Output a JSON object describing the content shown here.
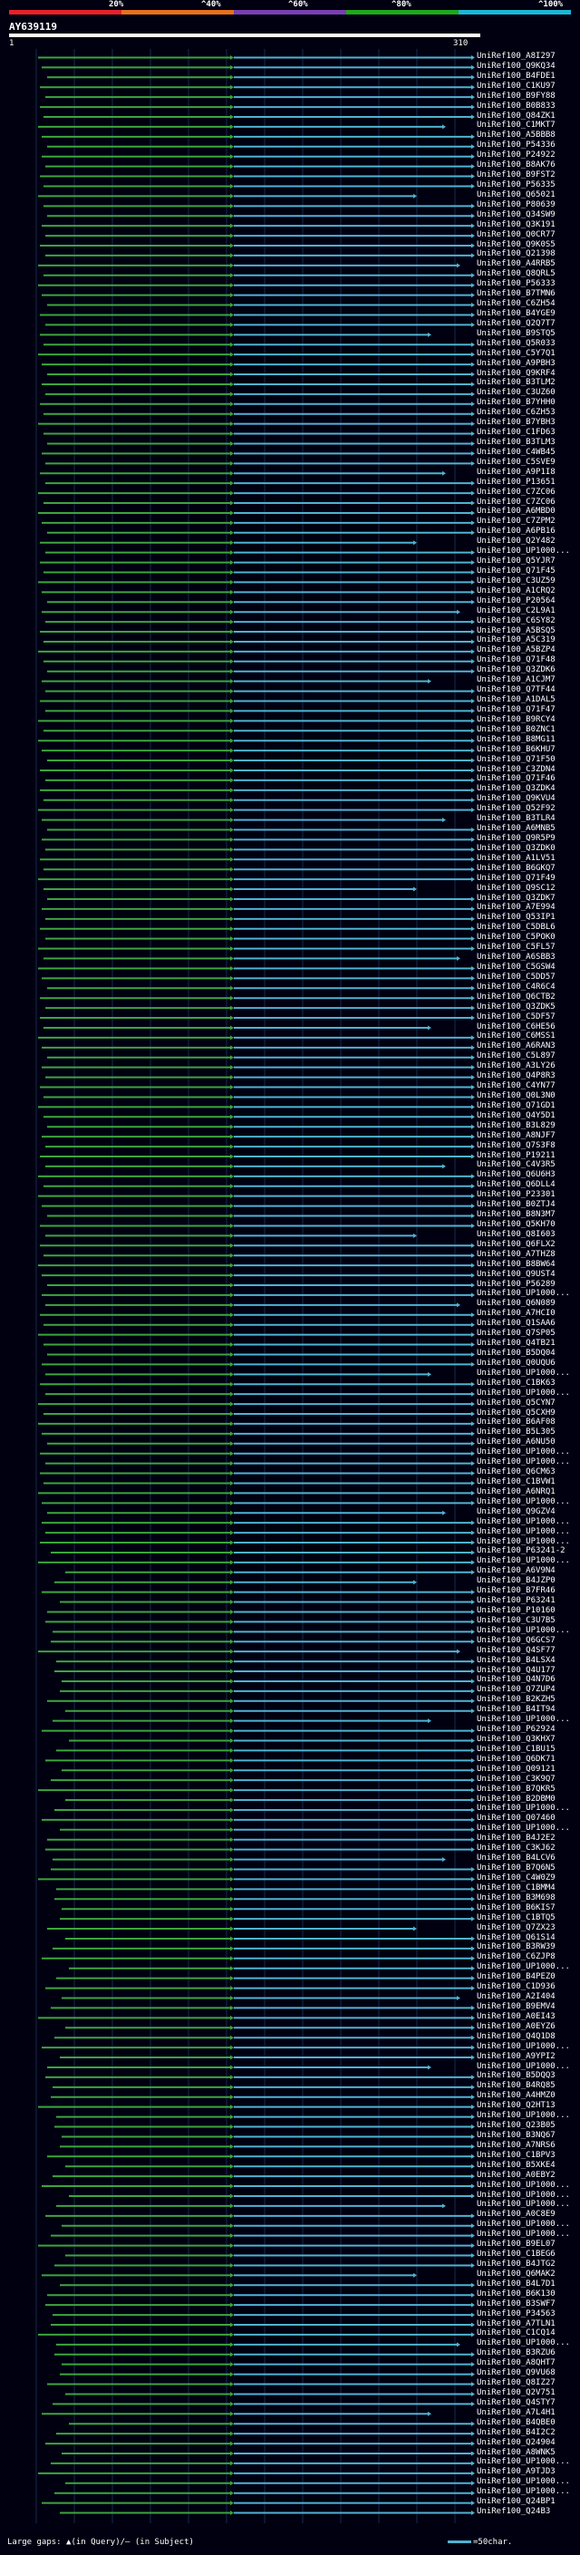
{
  "scale": {
    "labels": [
      "20%",
      "^40%",
      "^60%",
      "^80%",
      "^100%"
    ],
    "colors": [
      "#e8202a",
      "#e8701a",
      "#7a3fb3",
      "#1da81d",
      "#19b8d6"
    ]
  },
  "query": {
    "title": "AY639119",
    "start": "1",
    "end": "310"
  },
  "footer": {
    "text": "Large gaps: ▲(in Query)/– (in Subject)",
    "legend_text": "=50char."
  },
  "colors": {
    "background": "#000011",
    "green": "#3da53d",
    "blue": "#4fb3d1",
    "grid": "#1a2a4a"
  },
  "hits": [
    "UniRef100_A8I297",
    "UniRef100_Q9KQ34",
    "UniRef100_B4FDE1",
    "UniRef100_C1KU97",
    "UniRef100_B9FY88",
    "UniRef100_B0B833",
    "UniRef100_Q84ZK1",
    "UniRef100_C1MKT7",
    "UniRef100_A5BBB8",
    "UniRef100_P54336",
    "UniRef100_P24922",
    "UniRef100_B8AK76",
    "UniRef100_B9FST2",
    "UniRef100_P56335",
    "UniRef100_Q65021",
    "UniRef100_P80639",
    "UniRef100_Q34SW9",
    "UniRef100_Q3K191",
    "UniRef100_Q0CR77",
    "UniRef100_Q9K0S5",
    "UniRef100_Q21398",
    "UniRef100_A4RRB5",
    "UniRef100_Q8QRL5",
    "UniRef100_P56333",
    "UniRef100_B7TMN6",
    "UniRef100_C6ZH54",
    "UniRef100_B4YGE9",
    "UniRef100_Q2Q7T7",
    "UniRef100_B9STQ5",
    "UniRef100_Q5R033",
    "UniRef100_C5Y7Q1",
    "UniRef100_A9PBH3",
    "UniRef100_Q9KRF4",
    "UniRef100_B3TLM2",
    "UniRef100_C3UZ60",
    "UniRef100_B7YHH0",
    "UniRef100_C6ZH53",
    "UniRef100_B7YBH3",
    "UniRef100_C1FD63",
    "UniRef100_B3TLM3",
    "UniRef100_C4WB45",
    "UniRef100_C5SVE9",
    "UniRef100_A9P1I8",
    "UniRef100_P13651",
    "UniRef100_C7ZC06",
    "UniRef100_C7ZC06",
    "UniRef100_A6MBD0",
    "UniRef100_C7ZPM2",
    "UniRef100_A6PB16",
    "UniRef100_Q2Y482",
    "UniRef100_UP1000...",
    "UniRef100_Q5YJR7",
    "UniRef100_Q71F45",
    "UniRef100_C3UZ59",
    "UniRef100_A1CRQ2",
    "UniRef100_P20564",
    "UniRef100_C2L9A1",
    "UniRef100_C6SY82",
    "UniRef100_A5BSQ5",
    "UniRef100_A5C319",
    "UniRef100_A5BZP4",
    "UniRef100_Q71F48",
    "UniRef100_Q3ZDK6",
    "UniRef100_A1CJM7",
    "UniRef100_Q7TF44",
    "UniRef100_A1DAL5",
    "UniRef100_Q71F47",
    "UniRef100_B9RCY4",
    "UniRef100_B0ZNC1",
    "UniRef100_B8MG11",
    "UniRef100_B6KHU7",
    "UniRef100_Q71F50",
    "UniRef100_C3ZDN4",
    "UniRef100_Q71F46",
    "UniRef100_Q3ZDK4",
    "UniRef100_Q9KVU4",
    "UniRef100_Q52F92",
    "UniRef100_B3TLR4",
    "UniRef100_A6MNB5",
    "UniRef100_Q9R5P9",
    "UniRef100_Q3ZDK0",
    "UniRef100_A1LV51",
    "UniRef100_B6GKQ7",
    "UniRef100_Q71F49",
    "UniRef100_Q9SC12",
    "UniRef100_Q3ZDK7",
    "UniRef100_A7E994",
    "UniRef100_Q53IP1",
    "UniRef100_C5DBL6",
    "UniRef100_C5POK0",
    "UniRef100_C5FL57",
    "UniRef100_A6SBB3",
    "UniRef100_C5GSW4",
    "UniRef100_C5DD57",
    "UniRef100_C4R6C4",
    "UniRef100_Q6CTB2",
    "UniRef100_Q3ZDK5",
    "UniRef100_C5DF57",
    "UniRef100_C6HE56",
    "UniRef100_C6MSS1",
    "UniRef100_A6RAN3",
    "UniRef100_C5L897",
    "UniRef100_A3LY26",
    "UniRef100_Q4P8R3",
    "UniRef100_C4YN77",
    "UniRef100_Q0L3N0",
    "UniRef100_Q71GD1",
    "UniRef100_Q4Y5D1",
    "UniRef100_B3L829",
    "UniRef100_A8NJF7",
    "UniRef100_Q7S3F8",
    "UniRef100_P19211",
    "UniRef100_C4V3R5",
    "UniRef100_Q6U6H3",
    "UniRef100_Q6DLL4",
    "UniRef100_P23301",
    "UniRef100_B0ZTJ4",
    "UniRef100_B8N3M7",
    "UniRef100_Q5KH70",
    "UniRef100_Q8I603",
    "UniRef100_Q6FLX2",
    "UniRef100_A7THZ8",
    "UniRef100_B8BW64",
    "UniRef100_Q9UST4",
    "UniRef100_P56289",
    "UniRef100_UP1000...",
    "UniRef100_Q6N089",
    "UniRef100_A7HCI0",
    "UniRef100_Q1SAA6",
    "UniRef100_Q7SP05",
    "UniRef100_Q4TB21",
    "UniRef100_B5DQ04",
    "UniRef100_Q0UQU6",
    "UniRef100_UP1000...",
    "UniRef100_C1BK63",
    "UniRef100_UP1000...",
    "UniRef100_Q5CYN7",
    "UniRef100_Q5CXH9",
    "UniRef100_B6AF08",
    "UniRef100_B5L305",
    "UniRef100_A6NU50",
    "UniRef100_UP1000...",
    "UniRef100_UP1000...",
    "UniRef100_Q6CM63",
    "UniRef100_C1BVW1",
    "UniRef100_A6NRQ1",
    "UniRef100_UP1000...",
    "UniRef100_Q9GZV4",
    "UniRef100_UP1000...",
    "UniRef100_UP1000...",
    "UniRef100_UP1000...",
    "UniRef100_P63241-2",
    "UniRef100_UP1000...",
    "UniRef100_A6V9N4",
    "UniRef100_B4JZP0",
    "UniRef100_B7FR46",
    "UniRef100_P63241",
    "UniRef100_P10160",
    "UniRef100_C3U7B5",
    "UniRef100_UP1000...",
    "UniRef100_Q6GCS7",
    "UniRef100_Q4SF77",
    "UniRef100_B4LSX4",
    "UniRef100_Q4U177",
    "UniRef100_Q4N7D6",
    "UniRef100_Q7ZUP4",
    "UniRef100_B2KZH5",
    "UniRef100_B4IT94",
    "UniRef100_UP1000...",
    "UniRef100_P62924",
    "UniRef100_Q3KHX7",
    "UniRef100_C1BU15",
    "UniRef100_Q6DK71",
    "UniRef100_Q09121",
    "UniRef100_C3K9Q7",
    "UniRef100_B7QKR5",
    "UniRef100_B2DBM0",
    "UniRef100_UP1000...",
    "UniRef100_Q07460",
    "UniRef100_UP1000...",
    "UniRef100_B4J2E2",
    "UniRef100_C3KJ62",
    "UniRef100_B4LCV6",
    "UniRef100_B7Q6N5",
    "UniRef100_C4W0Z9",
    "UniRef100_C1BMM4",
    "UniRef100_B3M698",
    "UniRef100_B6KIS7",
    "UniRef100_C1BTQ5",
    "UniRef100_Q7ZX23",
    "UniRef100_Q61S14",
    "UniRef100_B3RW39",
    "UniRef100_C6ZJP8",
    "UniRef100_UP1000...",
    "UniRef100_B4PEZ0",
    "UniRef100_C1D936",
    "UniRef100_A2I404",
    "UniRef100_B9EMV4",
    "UniRef100_A0EI43",
    "UniRef100_A0EYZ6",
    "UniRef100_Q4Q1D8",
    "UniRef100_UP1000...",
    "UniRef100_A9YPI2",
    "UniRef100_UP1000...",
    "UniRef100_B5DQQ3",
    "UniRef100_B4RQ85",
    "UniRef100_A4HMZ0",
    "UniRef100_Q2HT13",
    "UniRef100_UP1000...",
    "UniRef100_Q23B05",
    "UniRef100_B3NQ67",
    "UniRef100_A7NRS6",
    "UniRef100_C1BPV3",
    "UniRef100_B5XKE4",
    "UniRef100_A0EBY2",
    "UniRef100_UP1000...",
    "UniRef100_UP1000...",
    "UniRef100_UP1000...",
    "UniRef100_A0C8E9",
    "UniRef100_UP1000...",
    "UniRef100_UP1000...",
    "UniRef100_B9EL07",
    "UniRef100_C1BEG6",
    "UniRef100_B4JTG2",
    "UniRef100_Q6MAK2",
    "UniRef100_B4L7D1",
    "UniRef100_B6K130",
    "UniRef100_B3SWF7",
    "UniRef100_P34563",
    "UniRef100_A7TLN1",
    "UniRef100_C1CQ14",
    "UniRef100_UP1000...",
    "UniRef100_B3RZU6",
    "UniRef100_A8QHT7",
    "UniRef100_Q9VU68",
    "UniRef100_Q8IZ27",
    "UniRef100_Q2V751",
    "UniRef100_Q4STY7",
    "UniRef100_A7L4H1",
    "UniRef100_B4QBE0",
    "UniRef100_B4I2C2",
    "UniRef100_Q24904",
    "UniRef100_A8WNK5",
    "UniRef100_UP1000...",
    "UniRef100_A9TJD3",
    "UniRef100_UP1000...",
    "UniRef100_UP1000...",
    "UniRef100_Q24BP1",
    "UniRef100_Q24B3"
  ]
}
